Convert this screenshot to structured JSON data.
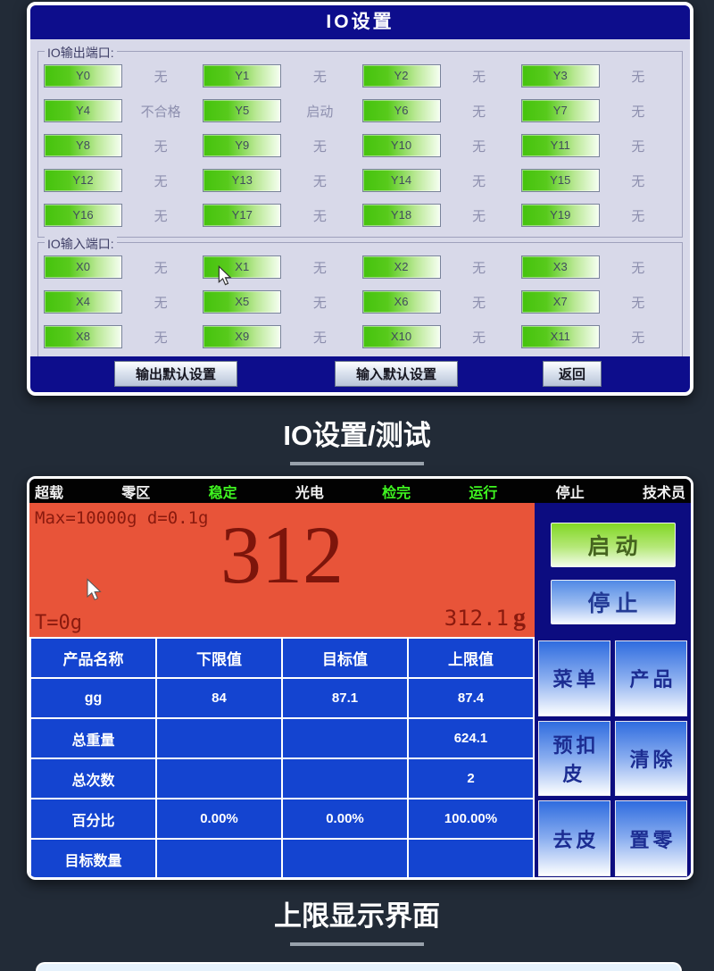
{
  "colors": {
    "page_bg": "#222b37",
    "title_bar_blue": "#0d0d8c",
    "io_body": "#d8d9e9",
    "port_green": "#45c30d",
    "status_green": "#3ff520",
    "display_red": "#e85439",
    "display_text_red": "#8a1a0e",
    "table_blue": "#1444d0",
    "panel_navy": "#0c0c80"
  },
  "io_screen": {
    "title": "IO设置",
    "output_group_label": "IO输出端口:",
    "input_group_label": "IO输入端口:",
    "outputs": [
      {
        "port": "Y0",
        "func": "无"
      },
      {
        "port": "Y1",
        "func": "无"
      },
      {
        "port": "Y2",
        "func": "无"
      },
      {
        "port": "Y3",
        "func": "无"
      },
      {
        "port": "Y4",
        "func": "不合格"
      },
      {
        "port": "Y5",
        "func": "启动"
      },
      {
        "port": "Y6",
        "func": "无"
      },
      {
        "port": "Y7",
        "func": "无"
      },
      {
        "port": "Y8",
        "func": "无"
      },
      {
        "port": "Y9",
        "func": "无"
      },
      {
        "port": "Y10",
        "func": "无"
      },
      {
        "port": "Y11",
        "func": "无"
      },
      {
        "port": "Y12",
        "func": "无"
      },
      {
        "port": "Y13",
        "func": "无"
      },
      {
        "port": "Y14",
        "func": "无"
      },
      {
        "port": "Y15",
        "func": "无"
      },
      {
        "port": "Y16",
        "func": "无"
      },
      {
        "port": "Y17",
        "func": "无"
      },
      {
        "port": "Y18",
        "func": "无"
      },
      {
        "port": "Y19",
        "func": "无"
      }
    ],
    "inputs": [
      {
        "port": "X0",
        "func": "无"
      },
      {
        "port": "X1",
        "func": "无"
      },
      {
        "port": "X2",
        "func": "无"
      },
      {
        "port": "X3",
        "func": "无"
      },
      {
        "port": "X4",
        "func": "无"
      },
      {
        "port": "X5",
        "func": "无"
      },
      {
        "port": "X6",
        "func": "无"
      },
      {
        "port": "X7",
        "func": "无"
      },
      {
        "port": "X8",
        "func": "无"
      },
      {
        "port": "X9",
        "func": "无"
      },
      {
        "port": "X10",
        "func": "无"
      },
      {
        "port": "X11",
        "func": "无"
      }
    ],
    "footer_buttons": [
      "输出默认设置",
      "输入默认设置",
      "返回"
    ]
  },
  "caption_io": "IO设置/测试",
  "scale_screen": {
    "status_items": [
      {
        "label": "超载",
        "active": false
      },
      {
        "label": "零区",
        "active": false
      },
      {
        "label": "稳定",
        "active": true
      },
      {
        "label": "光电",
        "active": false
      },
      {
        "label": "检完",
        "active": true
      },
      {
        "label": "运行",
        "active": true
      },
      {
        "label": "停止",
        "active": false
      },
      {
        "label": "技术员",
        "active": false
      }
    ],
    "display": {
      "range_info": "Max=10000g  d=0.1g",
      "main_value": "312",
      "tare": "T=0g",
      "weight_value": "312.1",
      "weight_unit": "g"
    },
    "start_button": "启动",
    "stop_button": "停止",
    "table": {
      "headers": [
        "产品名称",
        "下限值",
        "目标值",
        "上限值"
      ],
      "rows": [
        [
          "gg",
          "84",
          "87.1",
          "87.4"
        ],
        [
          "总重量",
          "",
          "",
          "624.1"
        ],
        [
          "总次数",
          "",
          "",
          "2"
        ],
        [
          "百分比",
          "0.00%",
          "0.00%",
          "100.00%"
        ],
        [
          "目标数量",
          "",
          "",
          ""
        ]
      ]
    },
    "side_buttons": [
      "菜单",
      "产品",
      "预扣皮",
      "清除",
      "去皮",
      "置零"
    ]
  },
  "caption_scale": "上限显示界面"
}
